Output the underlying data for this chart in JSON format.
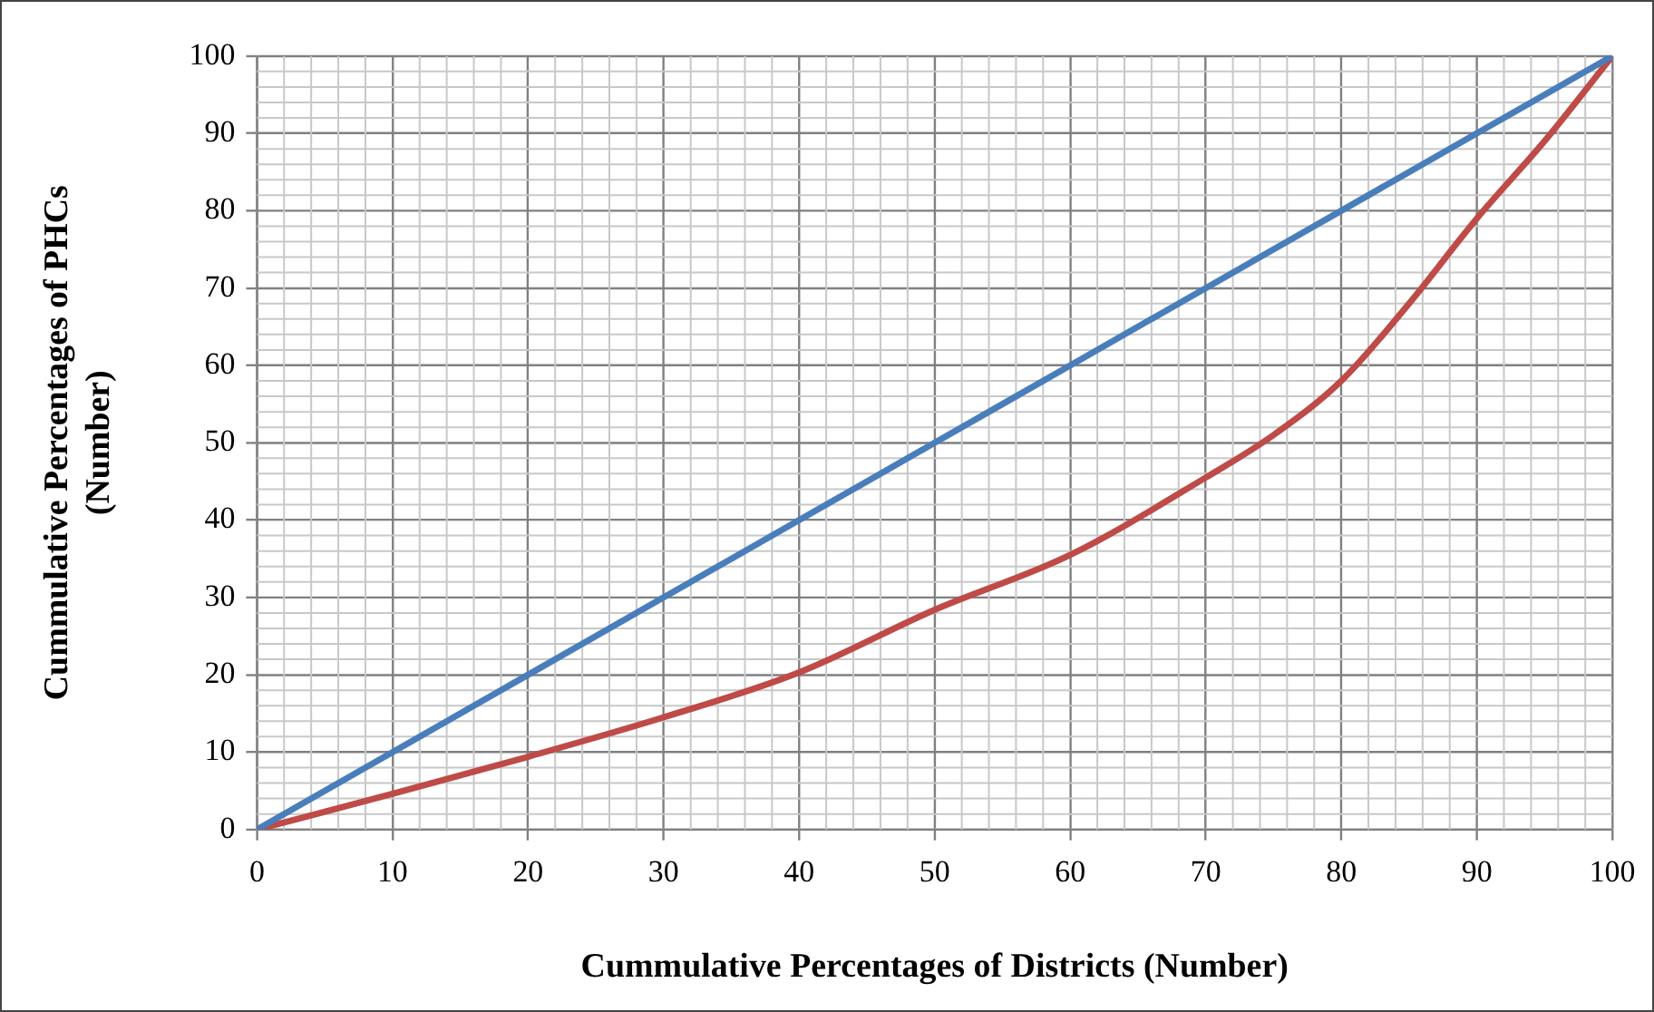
{
  "chart_data": {
    "type": "line",
    "xlabel": "Cummulative Percentages of Districts (Number)",
    "ylabel": "Cummulative Percentages of PHCs\n(Number)",
    "xlim": [
      0,
      100
    ],
    "xticks": [
      0,
      10,
      20,
      30,
      40,
      50,
      60,
      70,
      80,
      90,
      100
    ],
    "ylim": [
      0,
      100
    ],
    "yticks": [
      0,
      10,
      20,
      30,
      40,
      50,
      60,
      70,
      80,
      90,
      100
    ],
    "grid": true,
    "legend": false,
    "marker": "none",
    "line_style": "solid",
    "series": [
      {
        "color": "#4a7ebb",
        "x": [
          0,
          10,
          20,
          30,
          40,
          50,
          60,
          70,
          80,
          90,
          100
        ],
        "values": [
          0,
          10,
          20,
          30,
          40,
          50,
          60,
          70,
          80,
          90,
          100
        ]
      },
      {
        "color": "#be4b48",
        "x": [
          0,
          10,
          20,
          30,
          40,
          50,
          60,
          70,
          75,
          80,
          85,
          90,
          95,
          100
        ],
        "values": [
          0,
          4.6,
          9.4,
          14.5,
          20.3,
          28.4,
          35.5,
          45.5,
          51,
          58,
          68,
          79,
          89,
          100
        ]
      }
    ]
  }
}
